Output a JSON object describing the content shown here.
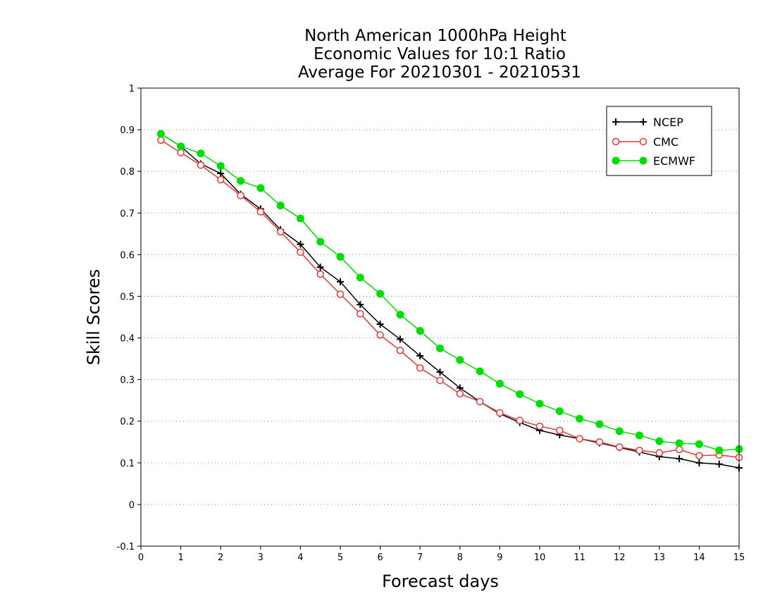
{
  "chart_data": {
    "type": "line",
    "title_lines": [
      "North American 1000hPa Height",
      "Economic Values for 10:1 Ratio",
      "Average For 20210301 - 20210531"
    ],
    "xlabel": "Forecast days",
    "ylabel": "Skill Scores",
    "xlim": [
      0,
      15
    ],
    "ylim": [
      -0.1,
      1
    ],
    "x_ticks": [
      0,
      1,
      2,
      3,
      4,
      5,
      6,
      7,
      8,
      9,
      10,
      11,
      12,
      13,
      14,
      15
    ],
    "y_ticks": [
      -0.1,
      0,
      0.1,
      0.2,
      0.3,
      0.4,
      0.5,
      0.6,
      0.7,
      0.8,
      0.9,
      1
    ],
    "x_tick_labels": [
      "0",
      "1",
      "2",
      "3",
      "4",
      "5",
      "6",
      "7",
      "8",
      "9",
      "10",
      "11",
      "12",
      "13",
      "14",
      "15"
    ],
    "y_tick_labels": [
      "-0.1",
      "0",
      "0.1",
      "0.2",
      "0.3",
      "0.4",
      "0.5",
      "0.6",
      "0.7",
      "0.8",
      "0.9",
      "1"
    ],
    "grid": true,
    "legend_position": "top-right",
    "x": [
      0.5,
      1,
      1.5,
      2,
      2.5,
      3,
      3.5,
      4,
      4.5,
      5,
      5.5,
      6,
      6.5,
      7,
      7.5,
      8,
      8.5,
      9,
      9.5,
      10,
      10.5,
      11,
      11.5,
      12,
      12.5,
      13,
      13.5,
      14,
      14.5,
      15
    ],
    "series": [
      {
        "name": "NCEP",
        "color": "#000000",
        "marker": "plus",
        "values": [
          0.89,
          0.86,
          0.818,
          0.795,
          0.745,
          0.71,
          0.66,
          0.625,
          0.57,
          0.535,
          0.48,
          0.433,
          0.397,
          0.357,
          0.318,
          0.28,
          0.247,
          0.218,
          0.197,
          0.178,
          0.167,
          0.158,
          0.148,
          0.137,
          0.126,
          0.115,
          0.11,
          0.1,
          0.097,
          0.088
        ]
      },
      {
        "name": "CMC",
        "color": "#ee3333",
        "marker": "open-circle",
        "values": [
          0.875,
          0.845,
          0.815,
          0.78,
          0.742,
          0.703,
          0.655,
          0.606,
          0.553,
          0.505,
          0.458,
          0.407,
          0.37,
          0.328,
          0.298,
          0.266,
          0.247,
          0.22,
          0.202,
          0.188,
          0.178,
          0.158,
          0.15,
          0.138,
          0.13,
          0.124,
          0.132,
          0.117,
          0.119,
          0.113
        ]
      },
      {
        "name": "ECMWF",
        "color": "#00dd00",
        "marker": "filled-circle",
        "values": [
          0.89,
          0.86,
          0.843,
          0.813,
          0.777,
          0.76,
          0.718,
          0.687,
          0.631,
          0.595,
          0.545,
          0.506,
          0.456,
          0.417,
          0.375,
          0.347,
          0.32,
          0.29,
          0.265,
          0.242,
          0.224,
          0.206,
          0.193,
          0.176,
          0.166,
          0.152,
          0.147,
          0.145,
          0.13,
          0.133
        ]
      }
    ]
  }
}
